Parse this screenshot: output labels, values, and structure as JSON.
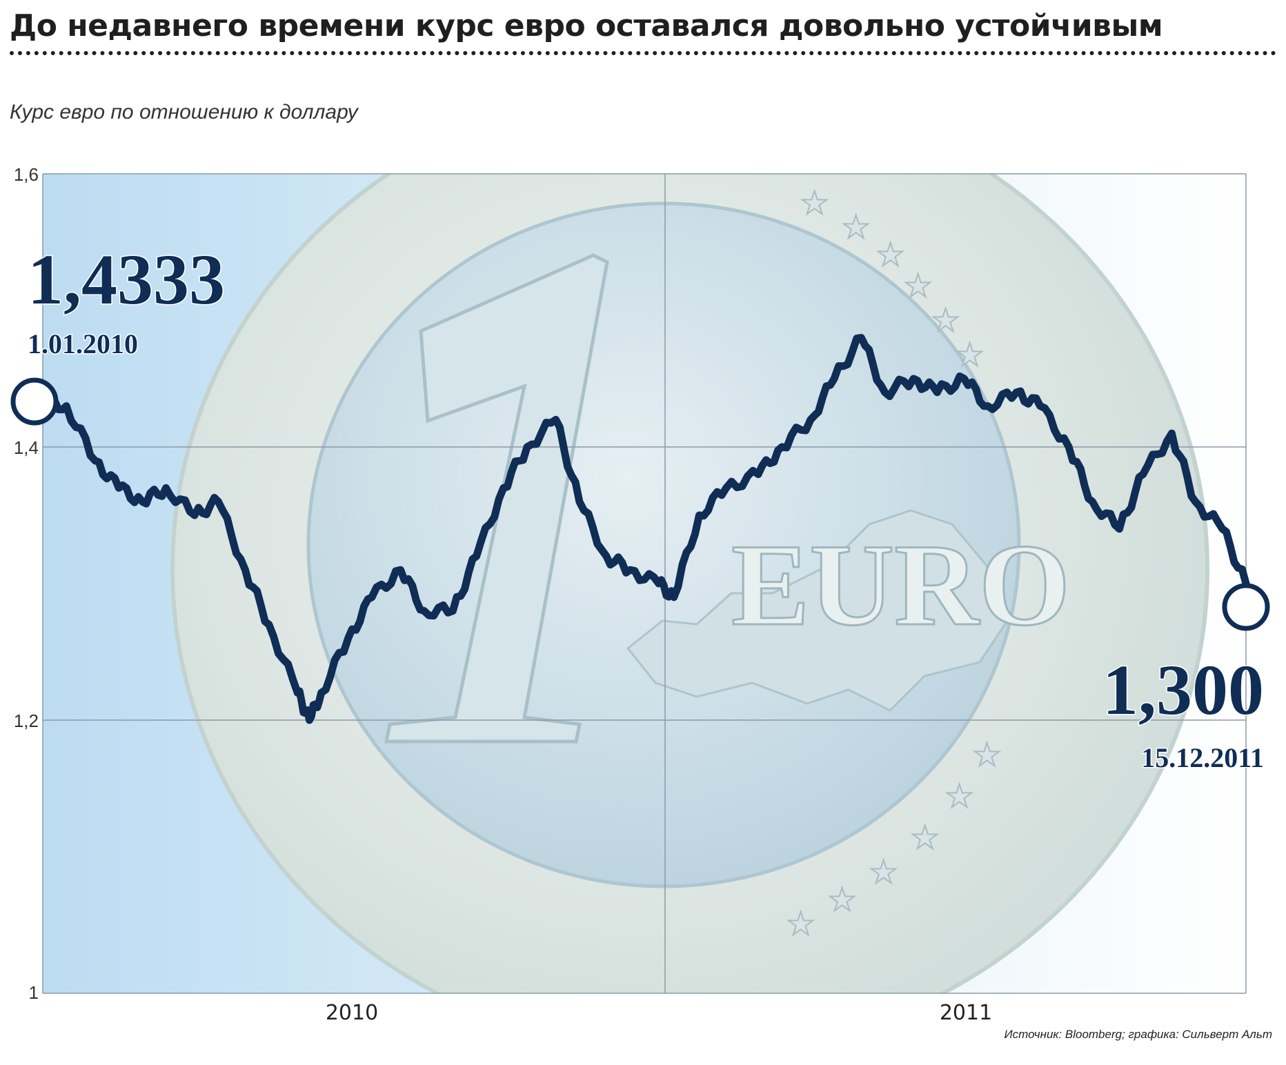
{
  "header": {
    "title": "До недавнего времени курс евро оставался довольно устойчивым",
    "subtitle": "Курс евро по отношению к доллару",
    "source": "Источник: Bloomberg; графика: Сильверт Альт"
  },
  "colors": {
    "line": "#0f2d55",
    "grid": "#8a9aa8",
    "coin_outer": "#dfe9ea",
    "coin_inner": "#c9dde6",
    "bg_left": "#bcdcf2",
    "bg_right": "#ffffff"
  },
  "annotations": {
    "start_value": "1,4333",
    "start_date": "1.01.2010",
    "end_value": "1,300",
    "end_date": "15.12.2011"
  },
  "chart_data": {
    "type": "line",
    "title": "До недавнего времени курс евро оставался довольно устойчивым",
    "subtitle": "Курс евро по отношению к доллару",
    "xlabel": "",
    "ylabel": "",
    "x_tick_labels": [
      "2010",
      "2011"
    ],
    "y_tick_labels": [
      "1",
      "1,2",
      "1,4",
      "1,6"
    ],
    "y_ticks": [
      1.0,
      1.2,
      1.4,
      1.6
    ],
    "ylim": [
      1.0,
      1.6
    ],
    "xlim": [
      "2010-01-01",
      "2011-12-15"
    ],
    "grid": true,
    "series": [
      {
        "x": [
          "2010-01-01",
          "2010-01-15",
          "2010-02-01",
          "2010-02-15",
          "2010-03-01",
          "2010-03-15",
          "2010-04-01",
          "2010-04-15",
          "2010-05-01",
          "2010-05-15",
          "2010-06-01",
          "2010-06-08",
          "2010-06-15",
          "2010-07-01",
          "2010-07-15",
          "2010-08-01",
          "2010-08-15",
          "2010-09-01",
          "2010-09-15",
          "2010-10-01",
          "2010-10-15",
          "2010-11-01",
          "2010-11-15",
          "2010-12-01",
          "2010-12-15",
          "2011-01-01",
          "2011-01-10",
          "2011-01-25",
          "2011-02-10",
          "2011-03-01",
          "2011-03-15",
          "2011-04-01",
          "2011-04-15",
          "2011-05-01",
          "2011-05-15",
          "2011-06-01",
          "2011-06-15",
          "2011-07-01",
          "2011-07-15",
          "2011-08-01",
          "2011-08-15",
          "2011-09-01",
          "2011-09-15",
          "2011-10-01",
          "2011-10-15",
          "2011-11-01",
          "2011-11-15",
          "2011-12-01",
          "2011-12-15"
        ],
        "values": [
          1.4333,
          1.43,
          1.39,
          1.37,
          1.36,
          1.37,
          1.35,
          1.36,
          1.31,
          1.27,
          1.22,
          1.2,
          1.22,
          1.26,
          1.29,
          1.31,
          1.28,
          1.28,
          1.32,
          1.37,
          1.4,
          1.42,
          1.36,
          1.32,
          1.31,
          1.3,
          1.29,
          1.35,
          1.37,
          1.38,
          1.4,
          1.42,
          1.45,
          1.48,
          1.44,
          1.45,
          1.44,
          1.45,
          1.43,
          1.44,
          1.43,
          1.4,
          1.36,
          1.34,
          1.38,
          1.41,
          1.36,
          1.34,
          1.3
        ]
      }
    ]
  }
}
